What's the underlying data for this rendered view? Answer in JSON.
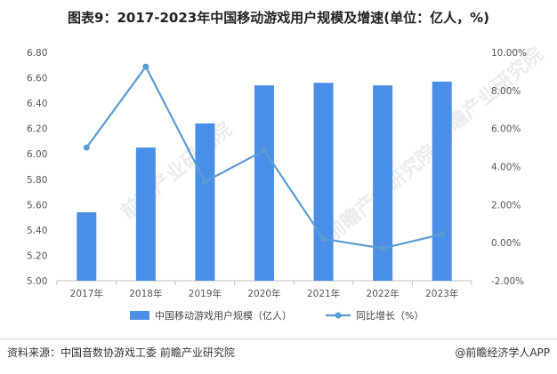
{
  "title": "图表9：2017-2023年中国移动游戏用户规模及增速(单位：亿人，%)",
  "watermark_text": "前瞻产业研究院",
  "colors": {
    "bar": "#4A8FE7",
    "line": "#5B9BD5",
    "axis": "#bfbfbf",
    "text": "#555555"
  },
  "chart_data": {
    "type": "bar",
    "categories": [
      "2017年",
      "2018年",
      "2019年",
      "2020年",
      "2021年",
      "2022年",
      "2023年"
    ],
    "series": [
      {
        "name": "中国移动游戏用户规模（亿人）",
        "type": "bar",
        "axis": "left",
        "values": [
          5.54,
          6.05,
          6.24,
          6.54,
          6.56,
          6.54,
          6.57
        ]
      },
      {
        "name": "同比增长（%）",
        "type": "line",
        "axis": "right",
        "values": [
          5.0,
          9.25,
          3.2,
          4.85,
          0.2,
          -0.3,
          0.45
        ]
      }
    ],
    "y_left": {
      "min": 5.0,
      "max": 6.8,
      "ticks": [
        "5.00",
        "5.20",
        "5.40",
        "5.60",
        "5.80",
        "6.00",
        "6.20",
        "6.40",
        "6.60",
        "6.80"
      ]
    },
    "y_right": {
      "min": -2.0,
      "max": 10.0,
      "ticks": [
        "-2.00%",
        "0.00%",
        "2.00%",
        "4.00%",
        "6.00%",
        "8.00%",
        "10.00%"
      ]
    },
    "grid": false,
    "legend_position": "bottom"
  },
  "footer": {
    "source": "资料来源：中国音数协游戏工委 前瞻产业研究院",
    "brand": "@前瞻经济学人APP"
  }
}
